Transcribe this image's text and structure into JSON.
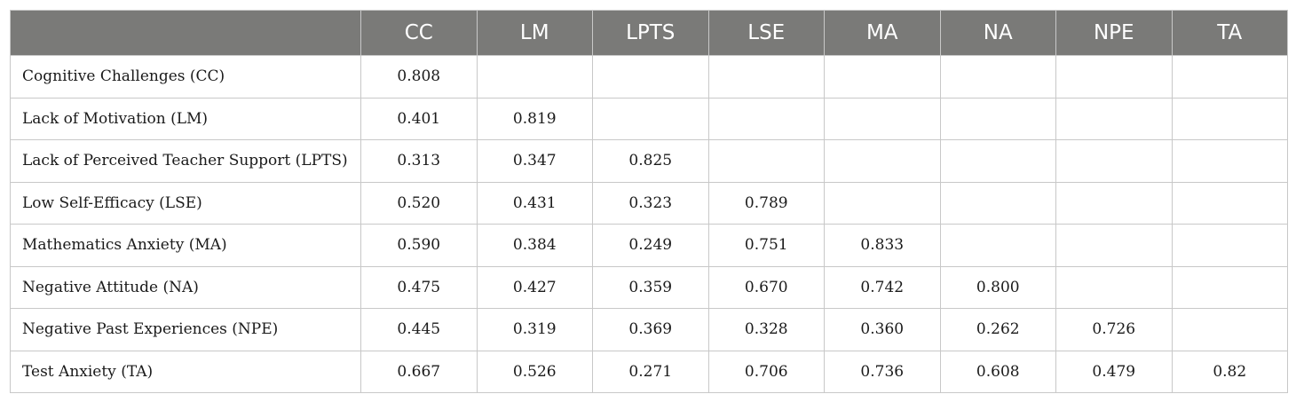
{
  "table": {
    "columns": [
      "",
      "CC",
      "LM",
      "LPTS",
      "LSE",
      "MA",
      "NA",
      "NPE",
      "TA"
    ],
    "rows": [
      [
        "Cognitive Challenges (CC)",
        "0.808",
        "",
        "",
        "",
        "",
        "",
        "",
        ""
      ],
      [
        "Lack of Motivation (LM)",
        "0.401",
        "0.819",
        "",
        "",
        "",
        "",
        "",
        ""
      ],
      [
        "Lack of Perceived Teacher Support (LPTS)",
        "0.313",
        "0.347",
        "0.825",
        "",
        "",
        "",
        "",
        ""
      ],
      [
        "Low Self-Efficacy (LSE)",
        "0.520",
        "0.431",
        "0.323",
        "0.789",
        "",
        "",
        "",
        ""
      ],
      [
        "Mathematics Anxiety (MA)",
        "0.590",
        "0.384",
        "0.249",
        "0.751",
        "0.833",
        "",
        "",
        ""
      ],
      [
        "Negative Attitude (NA)",
        "0.475",
        "0.427",
        "0.359",
        "0.670",
        "0.742",
        "0.800",
        "",
        ""
      ],
      [
        "Negative Past Experiences (NPE)",
        "0.445",
        "0.319",
        "0.369",
        "0.328",
        "0.360",
        "0.262",
        "0.726",
        ""
      ],
      [
        "Test Anxiety (TA)",
        "0.667",
        "0.526",
        "0.271",
        "0.706",
        "0.736",
        "0.608",
        "0.479",
        "0.82"
      ]
    ]
  },
  "colors": {
    "header_bg": "#7a7a78",
    "header_text": "#ffffff",
    "border": "#c8c8c8"
  }
}
